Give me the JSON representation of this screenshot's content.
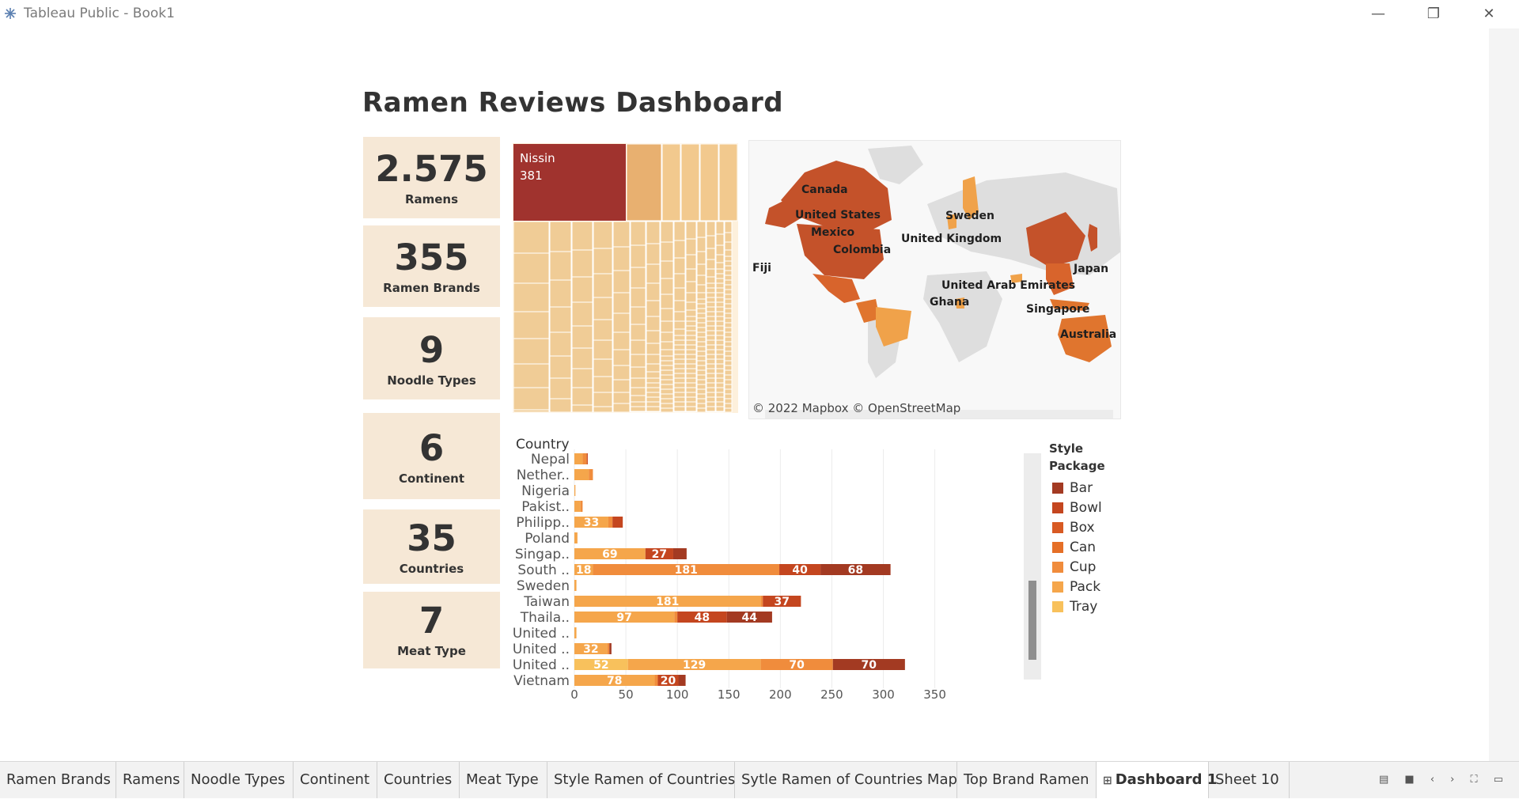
{
  "window": {
    "title": "Tableau Public - Book1",
    "app_icon": "tableau-icon",
    "min_glyph": "—",
    "max_glyph": "❐",
    "close_glyph": "✕"
  },
  "dashboard": {
    "title": "Ramen Reviews Dashboard",
    "kpis": [
      {
        "value": "2.575",
        "label": "Ramens"
      },
      {
        "value": "355",
        "label": "Ramen Brands"
      },
      {
        "value": "9",
        "label": "Noodle Types"
      },
      {
        "value": "6",
        "label": "Continent"
      },
      {
        "value": "35",
        "label": "Countries"
      },
      {
        "value": "7",
        "label": "Meat Type"
      }
    ],
    "treemap": {
      "top_brand": "Nissin",
      "top_value": "381",
      "colors": {
        "top": "#a0332e",
        "second": "#e8b070",
        "cell": "#f0cc96"
      }
    },
    "map": {
      "credit": "© 2022 Mapbox © OpenStreetMap",
      "countries": [
        "Canada",
        "United States",
        "Mexico",
        "Colombia",
        "Fiji",
        "Sweden",
        "United Kingdom",
        "United Arab Emirates",
        "Ghana",
        "Japan",
        "Singapore",
        "Australia"
      ],
      "colors": {
        "dark": "#c4522a",
        "mid": "#e0752e",
        "light": "#f0a24a",
        "land": "#dedede",
        "water": "#f8f8f8"
      }
    },
    "bar": {
      "header": "Country"
    },
    "legend": {
      "title_line1": "Style",
      "title_line2": "Package",
      "items": [
        {
          "label": "Bar",
          "color": "#a33a22"
        },
        {
          "label": "Bowl",
          "color": "#c4461f"
        },
        {
          "label": "Box",
          "color": "#d85a23"
        },
        {
          "label": "Can",
          "color": "#e56f27"
        },
        {
          "label": "Cup",
          "color": "#f08c3c"
        },
        {
          "label": "Pack",
          "color": "#f5a64b"
        },
        {
          "label": "Tray",
          "color": "#f8c15c"
        }
      ]
    }
  },
  "chart_data": {
    "type": "bar",
    "orientation": "horizontal",
    "stacked": true,
    "ylabel": "Country",
    "xlim": [
      0,
      350
    ],
    "xticks": [
      0,
      50,
      100,
      150,
      200,
      250,
      300,
      350
    ],
    "categories": [
      "Nepal",
      "Nether..",
      "Nigeria",
      "Pakist..",
      "Philipp..",
      "Poland",
      "Singap..",
      "South ..",
      "Sweden",
      "Taiwan",
      "Thaila..",
      "United ..",
      "United ..",
      "United ..",
      "Vietnam"
    ],
    "series": [
      {
        "name": "Tray",
        "values": [
          0,
          0,
          0,
          0,
          0,
          0,
          0,
          0,
          0,
          0,
          0,
          0,
          0,
          52,
          0
        ]
      },
      {
        "name": "Pack",
        "values": [
          8,
          14,
          1,
          6,
          33,
          3,
          69,
          18,
          2,
          181,
          97,
          2,
          32,
          129,
          78
        ]
      },
      {
        "name": "Cup",
        "values": [
          4,
          4,
          0,
          2,
          4,
          0,
          0,
          181,
          0,
          2,
          3,
          0,
          2,
          70,
          3
        ]
      },
      {
        "name": "Can",
        "values": [
          0,
          0,
          0,
          0,
          0,
          0,
          0,
          0,
          0,
          0,
          0,
          0,
          0,
          0,
          0
        ]
      },
      {
        "name": "Box",
        "values": [
          0,
          0,
          0,
          0,
          0,
          0,
          0,
          0,
          0,
          0,
          0,
          0,
          0,
          0,
          0
        ]
      },
      {
        "name": "Bowl",
        "values": [
          1,
          0,
          0,
          0,
          10,
          0,
          27,
          40,
          0,
          37,
          48,
          0,
          0,
          0,
          20
        ]
      },
      {
        "name": "Bar",
        "values": [
          0,
          0,
          0,
          0,
          0,
          0,
          13,
          68,
          0,
          0,
          44,
          0,
          2,
          70,
          7
        ]
      }
    ],
    "data_labels": [
      {
        "category": "Philipp..",
        "series": "Pack",
        "text": "33"
      },
      {
        "category": "Singap..",
        "series": "Pack",
        "text": "69"
      },
      {
        "category": "Singap..",
        "series": "Bowl",
        "text": "27"
      },
      {
        "category": "South ..",
        "series": "Pack",
        "text": "18"
      },
      {
        "category": "South ..",
        "series": "Cup",
        "text": "181"
      },
      {
        "category": "South ..",
        "series": "Bowl",
        "text": "40"
      },
      {
        "category": "South ..",
        "series": "Bar",
        "text": "68"
      },
      {
        "category": "Taiwan",
        "series": "Pack",
        "text": "181"
      },
      {
        "category": "Taiwan",
        "series": "Bowl",
        "text": "37"
      },
      {
        "category": "Thaila..",
        "series": "Pack",
        "text": "97"
      },
      {
        "category": "Thaila..",
        "series": "Bowl",
        "text": "48"
      },
      {
        "category": "Thaila..",
        "series": "Bar",
        "text": "44"
      },
      {
        "category": "United ..",
        "series": "Pack",
        "text": "32",
        "row": 12
      },
      {
        "category": "United ..",
        "series": "Tray",
        "text": "52",
        "row": 13
      },
      {
        "category": "United ..",
        "series": "Pack",
        "text": "129",
        "row": 13
      },
      {
        "category": "United ..",
        "series": "Cup",
        "text": "70",
        "row": 13
      },
      {
        "category": "United ..",
        "series": "Bar",
        "text": "70",
        "row": 13
      },
      {
        "category": "Vietnam",
        "series": "Pack",
        "text": "78"
      },
      {
        "category": "Vietnam",
        "series": "Bowl",
        "text": "20"
      }
    ],
    "grid": true,
    "legend": "right"
  },
  "tabs": [
    {
      "label": "Ramen Brands",
      "active": false
    },
    {
      "label": "Ramens",
      "active": false
    },
    {
      "label": "Noodle Types",
      "active": false
    },
    {
      "label": "Continent",
      "active": false
    },
    {
      "label": "Countries",
      "active": false
    },
    {
      "label": "Meat Type",
      "active": false
    },
    {
      "label": "Style Ramen of Countries",
      "active": false
    },
    {
      "label": "Sytle Ramen of Countries Map",
      "active": false
    },
    {
      "label": "Top Brand Ramen",
      "active": false
    },
    {
      "label": "Dashboard 1",
      "active": true
    },
    {
      "label": "Sheet 10",
      "active": false
    }
  ],
  "tab_tools": "▤ ■ ‹ › ⛶ ▭"
}
